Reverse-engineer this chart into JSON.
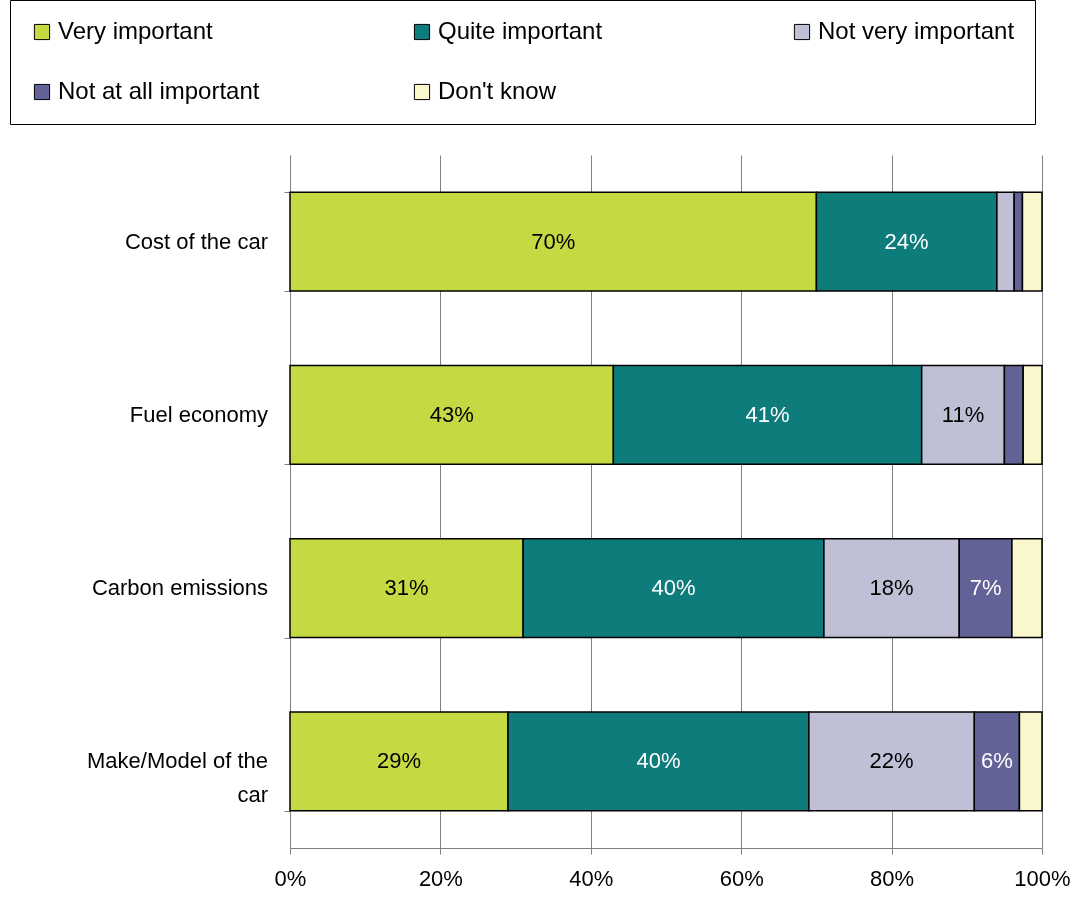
{
  "chart_data": {
    "type": "bar",
    "orientation": "horizontal",
    "stacked": true,
    "categories": [
      "Cost of the car",
      "Fuel economy",
      "Carbon emissions",
      "Make/Model of the car"
    ],
    "series": [
      {
        "name": "Very important",
        "color": "#c5d943",
        "values": [
          70,
          43,
          31,
          29
        ],
        "value_labels": [
          "70%",
          "43%",
          "31%",
          "29%"
        ]
      },
      {
        "name": "Quite important",
        "color": "#0e7c7b",
        "values": [
          24,
          41,
          40,
          40
        ],
        "value_labels": [
          "24%",
          "41%",
          "40%",
          "40%"
        ]
      },
      {
        "name": "Not very important",
        "color": "#bfbfd6",
        "values": [
          2.3,
          11,
          18,
          22
        ],
        "value_labels": [
          null,
          "11%",
          "18%",
          "22%"
        ]
      },
      {
        "name": "Not at all important",
        "color": "#626296",
        "values": [
          1.1,
          2.5,
          7,
          6
        ],
        "value_labels": [
          null,
          null,
          "7%",
          "6%"
        ]
      },
      {
        "name": "Don't know",
        "color": "#fbf7cc",
        "values": [
          2.6,
          2.5,
          4,
          3
        ],
        "value_labels": [
          null,
          null,
          null,
          null
        ]
      }
    ],
    "xlim": [
      0,
      100
    ],
    "xticks": [
      {
        "value": 0,
        "label": "0%"
      },
      {
        "value": 20,
        "label": "20%"
      },
      {
        "value": 40,
        "label": "40%"
      },
      {
        "value": 60,
        "label": "60%"
      },
      {
        "value": 80,
        "label": "80%"
      },
      {
        "value": 100,
        "label": "100%"
      }
    ],
    "grid": "x",
    "legend": "top"
  }
}
